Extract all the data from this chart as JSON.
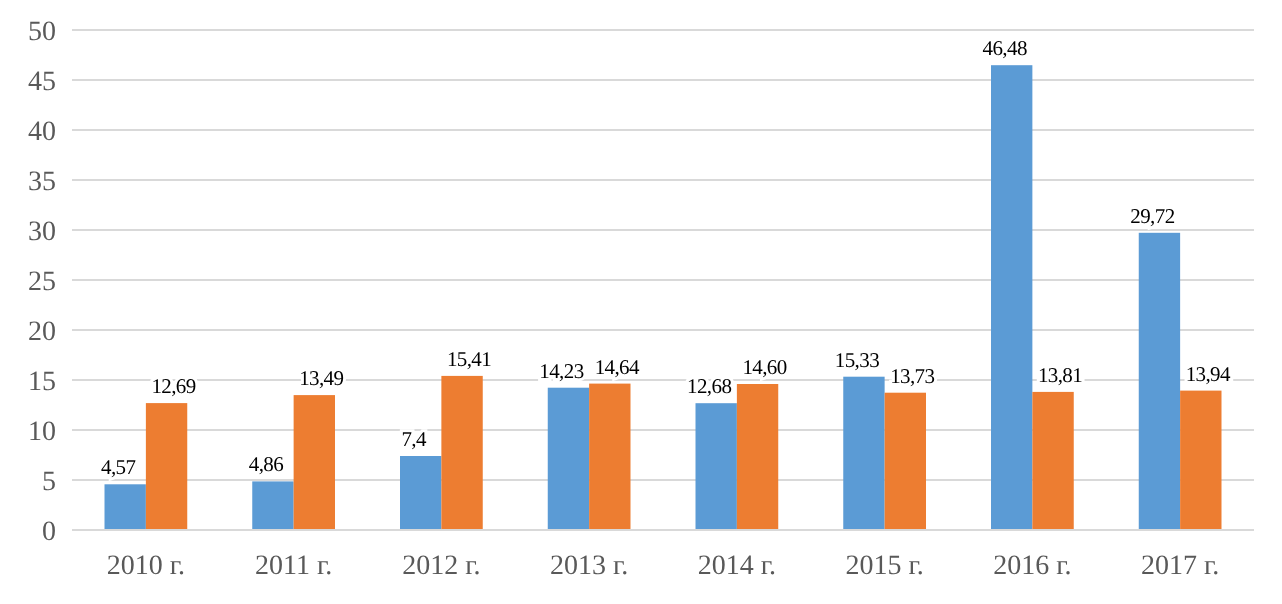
{
  "chart_data": {
    "type": "bar",
    "categories": [
      "2010 г.",
      "2011 г.",
      "2012 г.",
      "2013 г.",
      "2014 г.",
      "2015 г.",
      "2016 г.",
      "2017 г."
    ],
    "series": [
      {
        "color": "#5b9bd5",
        "values": [
          4.57,
          4.86,
          7.4,
          14.23,
          12.68,
          15.33,
          46.48,
          29.72
        ],
        "value_labels": [
          "4,57",
          "4,86",
          "7,4",
          "14,23",
          "12,68",
          "15,33",
          "46,48",
          "29,72"
        ]
      },
      {
        "color": "#ed7d31",
        "values": [
          12.69,
          13.49,
          15.41,
          14.64,
          14.6,
          13.73,
          13.81,
          13.94
        ],
        "value_labels": [
          "12,69",
          "13,49",
          "15,41",
          "14,64",
          "14,60",
          "13,73",
          "13,81",
          "13,94"
        ]
      }
    ],
    "ylim": [
      0,
      50
    ],
    "yticks": [
      0,
      5,
      10,
      15,
      20,
      25,
      30,
      35,
      40,
      45,
      50
    ],
    "grid": "y"
  }
}
